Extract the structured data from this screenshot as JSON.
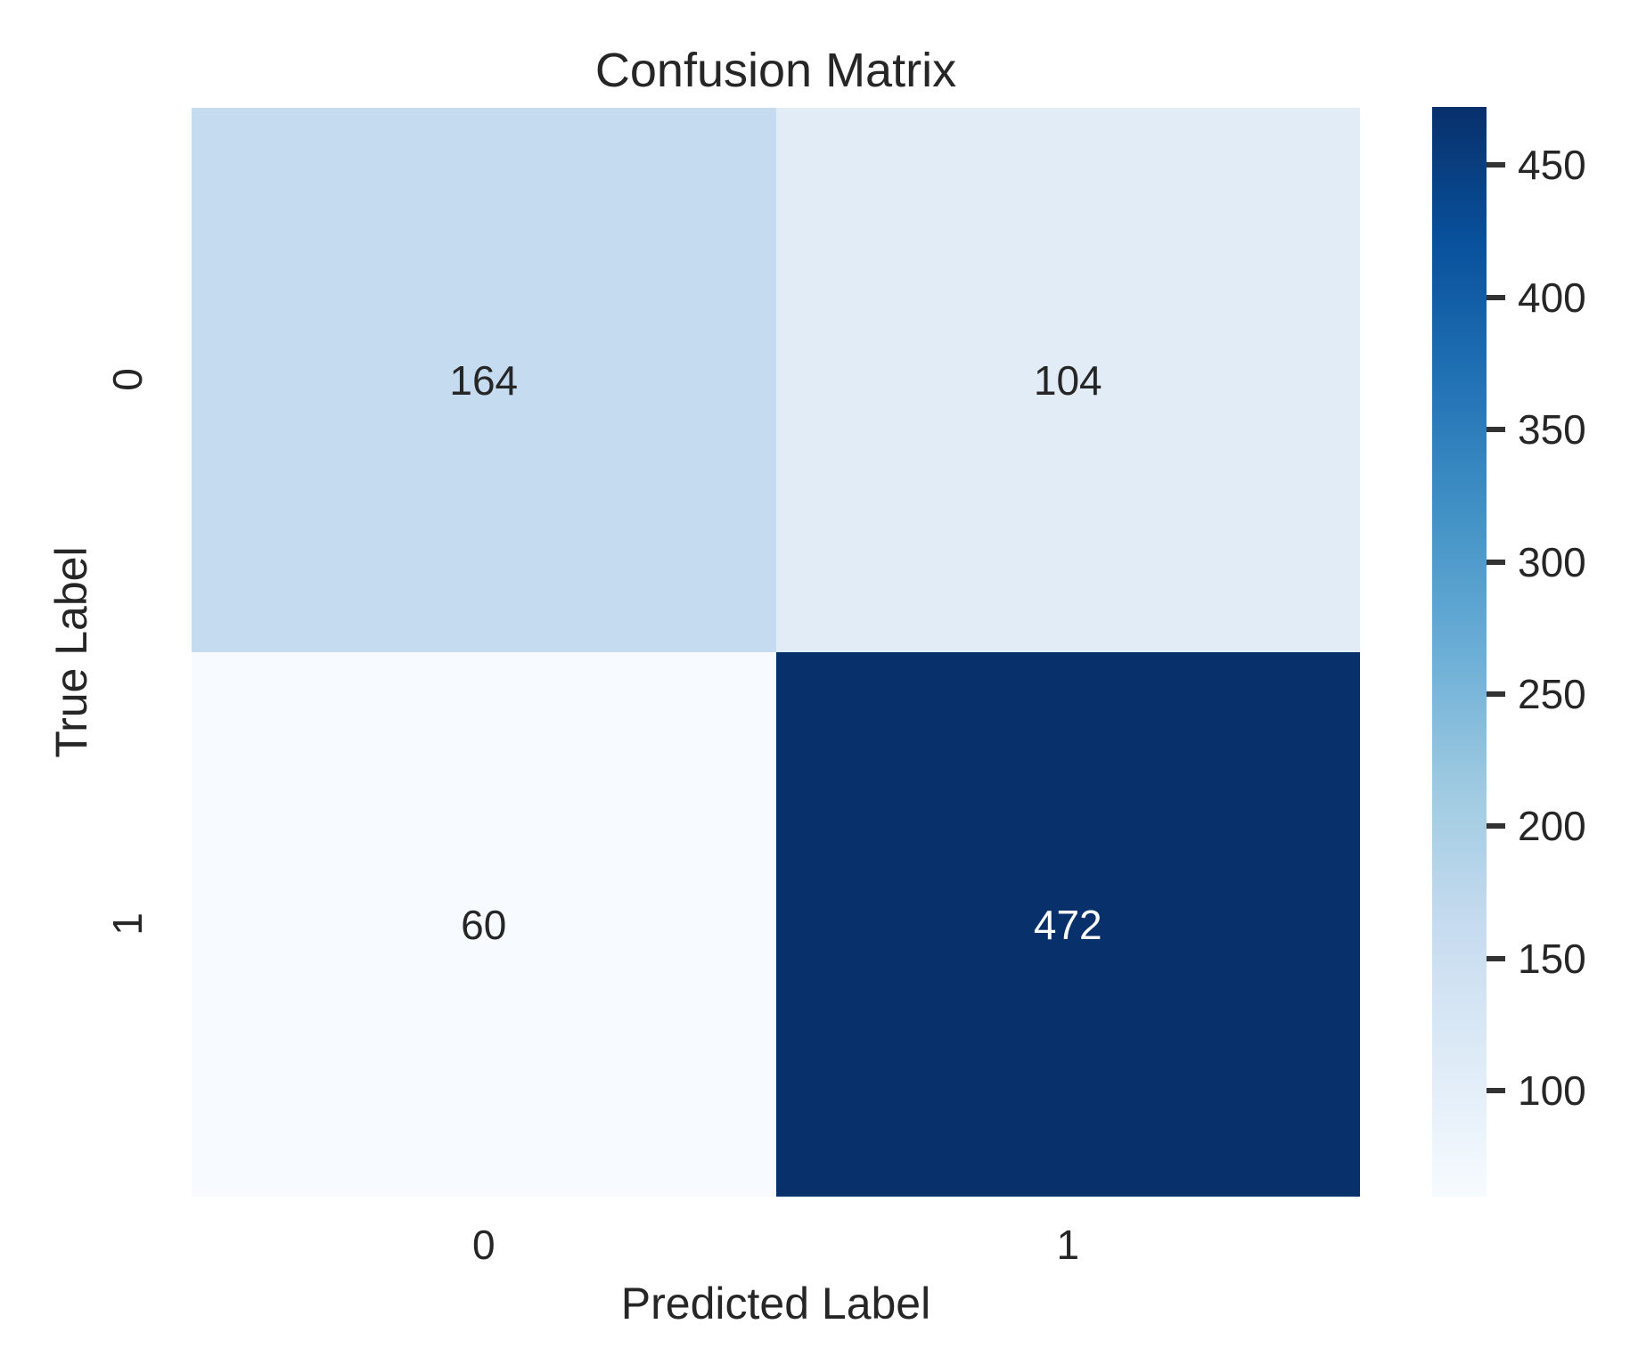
{
  "chart_data": {
    "type": "heatmap",
    "title": "Confusion Matrix",
    "xlabel": "Predicted Label",
    "ylabel": "True Label",
    "x_tick_labels": [
      "0",
      "1"
    ],
    "y_tick_labels": [
      "0",
      "1"
    ],
    "categories_x": [
      "0",
      "1"
    ],
    "categories_y": [
      "0",
      "1"
    ],
    "matrix": [
      [
        164,
        104
      ],
      [
        60,
        472
      ]
    ],
    "vmin": 60,
    "vmax": 472,
    "colormap": "Blues",
    "grid": false,
    "legend_position": "right-colorbar",
    "cells": [
      {
        "row": 0,
        "col": 0,
        "value": "164",
        "bg": "#c5dbef",
        "fg": "#262626"
      },
      {
        "row": 0,
        "col": 1,
        "value": "104",
        "bg": "#e2ecf7",
        "fg": "#262626"
      },
      {
        "row": 1,
        "col": 0,
        "value": "60",
        "bg": "#f7fbff",
        "fg": "#262626"
      },
      {
        "row": 1,
        "col": 1,
        "value": "472",
        "bg": "#08306b",
        "fg": "#ffffff"
      }
    ],
    "colorbar": {
      "min": 60,
      "max": 472,
      "ticks": [
        "450",
        "400",
        "350",
        "300",
        "250",
        "200",
        "150",
        "100"
      ],
      "gradient_top_to_bottom": [
        "#08306b",
        "#08519c",
        "#2171b5",
        "#4292c6",
        "#6baed6",
        "#9ecae1",
        "#c6dbef",
        "#deebf7",
        "#f7fbff"
      ]
    },
    "text_color": "#262626",
    "background_color": "#ffffff"
  }
}
